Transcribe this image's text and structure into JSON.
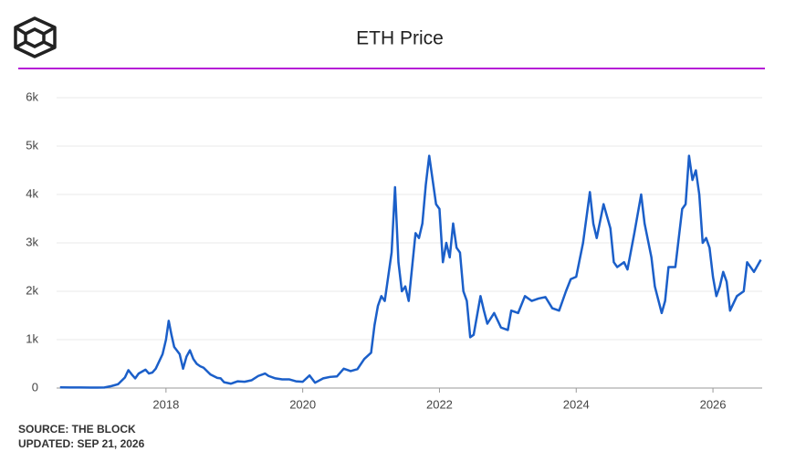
{
  "chart_data": {
    "type": "line",
    "title": "ETH Price",
    "source": "SOURCE: THE BLOCK",
    "updated": "UPDATED: SEP 21, 2026",
    "color": "#1b5fc9",
    "grid": true,
    "xlim": [
      2016.4,
      2026.72
    ],
    "xticks": [
      2018,
      2020,
      2022,
      2024,
      2026
    ],
    "ylim": [
      0,
      6000
    ],
    "yticks": [
      0,
      {
        "value": 1000,
        "label": "1k"
      },
      {
        "value": 2000,
        "label": "2k"
      },
      {
        "value": 3000,
        "label": "3k"
      },
      {
        "value": 4000,
        "label": "4k"
      },
      {
        "value": 5000,
        "label": "5k"
      },
      {
        "value": 6000,
        "label": "6k"
      }
    ],
    "x": [
      2016.45,
      2016.6,
      2016.75,
      2016.9,
      2017.0,
      2017.1,
      2017.2,
      2017.3,
      2017.4,
      2017.45,
      2017.5,
      2017.55,
      2017.6,
      2017.7,
      2017.75,
      2017.8,
      2017.85,
      2017.95,
      2018.0,
      2018.04,
      2018.08,
      2018.12,
      2018.2,
      2018.25,
      2018.3,
      2018.35,
      2018.4,
      2018.45,
      2018.5,
      2018.55,
      2018.65,
      2018.75,
      2018.8,
      2018.85,
      2018.95,
      2019.05,
      2019.15,
      2019.25,
      2019.35,
      2019.45,
      2019.5,
      2019.6,
      2019.7,
      2019.8,
      2019.9,
      2020.0,
      2020.1,
      2020.18,
      2020.3,
      2020.4,
      2020.5,
      2020.6,
      2020.7,
      2020.8,
      2020.9,
      2021.0,
      2021.05,
      2021.1,
      2021.15,
      2021.2,
      2021.25,
      2021.3,
      2021.35,
      2021.4,
      2021.45,
      2021.5,
      2021.55,
      2021.6,
      2021.65,
      2021.7,
      2021.75,
      2021.8,
      2021.85,
      2021.9,
      2021.95,
      2022.0,
      2022.05,
      2022.1,
      2022.15,
      2022.2,
      2022.25,
      2022.3,
      2022.35,
      2022.4,
      2022.45,
      2022.5,
      2022.6,
      2022.65,
      2022.7,
      2022.8,
      2022.9,
      2023.0,
      2023.05,
      2023.15,
      2023.25,
      2023.35,
      2023.45,
      2023.55,
      2023.65,
      2023.75,
      2023.85,
      2023.92,
      2024.0,
      2024.1,
      2024.2,
      2024.25,
      2024.3,
      2024.4,
      2024.5,
      2024.55,
      2024.6,
      2024.7,
      2024.75,
      2024.85,
      2024.95,
      2025.0,
      2025.1,
      2025.15,
      2025.25,
      2025.3,
      2025.35,
      2025.45,
      2025.55,
      2025.6,
      2025.65,
      2025.7,
      2025.75,
      2025.8,
      2025.85,
      2025.9,
      2025.95,
      2026.0,
      2026.05,
      2026.1,
      2026.15,
      2026.2,
      2026.25,
      2026.35,
      2026.45,
      2026.5,
      2026.6,
      2026.7
    ],
    "values": [
      14,
      12,
      12,
      9,
      9,
      12,
      40,
      80,
      220,
      370,
      280,
      200,
      300,
      380,
      300,
      320,
      400,
      700,
      1000,
      1390,
      1100,
      850,
      700,
      400,
      650,
      780,
      600,
      500,
      450,
      420,
      280,
      210,
      200,
      120,
      90,
      140,
      130,
      160,
      250,
      300,
      250,
      200,
      180,
      180,
      140,
      130,
      260,
      110,
      200,
      230,
      240,
      400,
      350,
      390,
      600,
      730,
      1300,
      1700,
      1900,
      1800,
      2300,
      2800,
      4150,
      2600,
      2000,
      2100,
      1800,
      2500,
      3200,
      3100,
      3400,
      4200,
      4800,
      4300,
      3800,
      3700,
      2600,
      3000,
      2700,
      3400,
      2900,
      2800,
      2000,
      1800,
      1050,
      1100,
      1900,
      1600,
      1330,
      1550,
      1250,
      1200,
      1600,
      1550,
      1900,
      1800,
      1850,
      1880,
      1650,
      1600,
      2000,
      2250,
      2300,
      3000,
      4050,
      3400,
      3100,
      3800,
      3300,
      2600,
      2500,
      2600,
      2450,
      3200,
      4000,
      3400,
      2700,
      2100,
      1550,
      1800,
      2500,
      2500,
      3700,
      3800,
      4800,
      4300,
      4500,
      4000,
      3000,
      3100,
      2900,
      2300,
      1900,
      2100,
      2400,
      2200,
      1600,
      1900,
      2000,
      2600,
      2400,
      2650
    ]
  }
}
